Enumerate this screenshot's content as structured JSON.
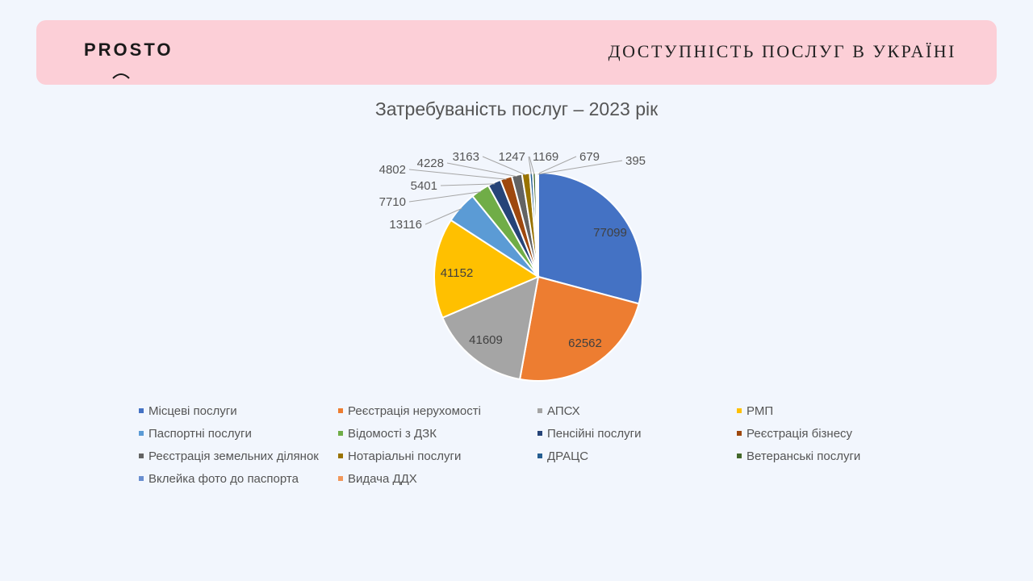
{
  "header": {
    "logo": "PROSTO",
    "title": "ДОСТУПНІСТЬ ПОСЛУГ В УКРАЇНІ"
  },
  "chart_data": {
    "type": "pie",
    "title": "Затребуваність послуг – 2023 рік",
    "legend_position": "bottom",
    "categories": [
      "Місцеві послуги",
      "Реєстрація нерухомості",
      "АПСХ",
      "РМП",
      "Паспортні послуги",
      "Відомості з ДЗК",
      "Пенсійні послуги",
      "Реєстрація бізнесу",
      "Реєстрація земельних ділянок",
      "Нотаріальні послуги",
      "ДРАЦС",
      "Ветеранські послуги",
      "Вклейка фото до паспорта",
      "Видача ДДХ"
    ],
    "values": [
      77099,
      62562,
      41609,
      41152,
      13116,
      7710,
      5401,
      4802,
      4228,
      3163,
      1247,
      1169,
      679,
      395
    ],
    "colors": [
      "#4472C4",
      "#ED7D31",
      "#A5A5A5",
      "#FFC000",
      "#5B9BD5",
      "#70AD47",
      "#264478",
      "#9E480E",
      "#636363",
      "#997300",
      "#255E91",
      "#43682B",
      "#698ED0",
      "#F1975A"
    ]
  }
}
